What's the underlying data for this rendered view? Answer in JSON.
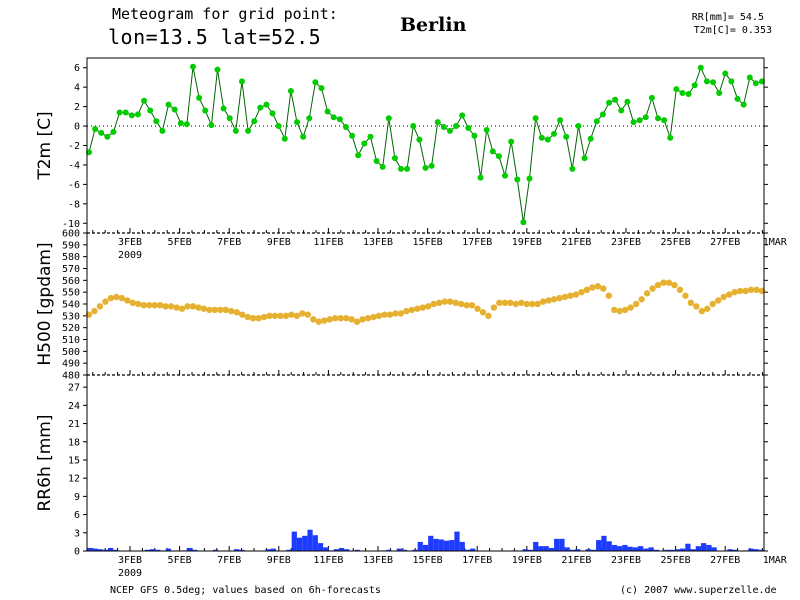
{
  "header": {
    "line1": "Meteogram for grid point:",
    "line2": "lon=13.5  lat=52.5",
    "city": "Berlin",
    "sum_rr": "RR[mm]= 54.5",
    "mean_t2m": "T2m[C]= 0.353"
  },
  "footer": {
    "left": "NCEP GFS 0.5deg; values based on 6h-forecasts",
    "right": "(c) 2007 www.superzelle.de"
  },
  "colors": {
    "t2m": "#00cc00",
    "h500": "#e6b030",
    "rr": "#1e3cff",
    "t2m_dark": "#006600"
  },
  "chart_data": [
    {
      "type": "line",
      "ylabel": "T2m [C]",
      "ylim": [
        -11,
        7
      ],
      "yticks": [
        6,
        4,
        2,
        0,
        -2,
        -4,
        -6,
        -8,
        -10
      ],
      "x_labels": [
        "3FEB",
        "5FEB",
        "7FEB",
        "9FEB",
        "11FEB",
        "13FEB",
        "15FEB",
        "17FEB",
        "19FEB",
        "21FEB",
        "23FEB",
        "25FEB",
        "27FEB",
        "1MAR"
      ],
      "year_label": "2009",
      "dashed_zero": true,
      "series": [
        {
          "values": [
            -2.7,
            -0.3,
            -0.7,
            -1.1,
            -0.6,
            1.4,
            1.4,
            1.1,
            1.2,
            2.6,
            1.6,
            0.5,
            -0.5,
            2.2,
            1.7,
            0.3,
            0.2,
            6.1,
            2.9,
            1.6,
            0.1,
            5.8,
            1.8,
            0.8,
            -0.5,
            4.6,
            -0.5,
            0.5,
            1.9,
            2.2,
            1.3,
            0.0,
            -1.3,
            3.6,
            0.4,
            -1.1,
            0.8,
            4.5,
            3.9,
            1.5,
            0.9,
            0.7,
            -0.1,
            -1.0,
            -3.0,
            -1.8,
            -1.1,
            -3.6,
            -4.2,
            0.8,
            -3.3,
            -4.4,
            -4.4,
            0.0,
            -1.4,
            -4.3,
            -4.1,
            0.4,
            -0.1,
            -0.5,
            0.0,
            1.1,
            -0.2,
            -1.0,
            -5.3,
            -0.4,
            -2.6,
            -3.1,
            -5.1,
            -1.6,
            -5.5,
            -9.9,
            -5.4,
            0.8,
            -1.2,
            -1.4,
            -0.8,
            0.6,
            -1.1,
            -4.4,
            0.0,
            -3.3,
            -1.3,
            0.5,
            1.2,
            2.4,
            2.7,
            1.6,
            2.5,
            0.4,
            0.6,
            0.9,
            2.9,
            0.8,
            0.6,
            -1.2,
            3.8,
            3.4,
            3.3,
            4.2,
            6.0,
            4.6,
            4.5,
            3.4,
            5.4,
            4.6,
            2.8,
            2.2,
            5.0,
            4.4,
            4.6
          ]
        }
      ]
    },
    {
      "type": "line",
      "ylabel": "H500 [gpdam]",
      "ylim": [
        480,
        600
      ],
      "yticks": [
        600,
        590,
        580,
        570,
        560,
        550,
        540,
        530,
        520,
        510,
        500,
        490,
        480
      ],
      "series": [
        {
          "values": [
            531,
            534,
            538,
            542,
            545,
            546,
            545,
            543,
            541,
            540,
            539,
            539,
            539,
            539,
            538,
            538,
            537,
            536,
            538,
            538,
            537,
            536,
            535,
            535,
            535,
            535,
            534,
            533,
            531,
            529,
            528,
            528,
            529,
            530,
            530,
            530,
            530,
            531,
            530,
            532,
            531,
            527,
            525,
            526,
            527,
            528,
            528,
            528,
            527,
            525,
            527,
            528,
            529,
            530,
            531,
            531,
            532,
            532,
            534,
            535,
            536,
            537,
            538,
            540,
            541,
            542,
            542,
            541,
            540,
            539,
            539,
            536,
            533,
            530,
            537,
            541,
            541,
            541,
            540,
            541,
            540,
            540,
            540,
            542,
            543,
            544,
            545,
            546,
            547,
            548,
            550,
            552,
            554,
            555,
            553,
            547,
            535,
            534,
            535,
            537,
            540,
            544,
            549,
            553,
            556,
            558,
            558,
            556,
            552,
            547,
            541,
            538,
            534,
            536,
            540,
            543,
            546,
            548,
            550,
            551,
            551,
            552,
            552,
            551
          ]
        }
      ]
    },
    {
      "type": "bar",
      "ylabel": "RR6h [mm]",
      "ylim": [
        0,
        29
      ],
      "yticks": [
        27,
        24,
        21,
        18,
        15,
        12,
        9,
        6,
        3,
        0
      ],
      "x_labels": [
        "3FEB",
        "5FEB",
        "7FEB",
        "9FEB",
        "11FEB",
        "13FEB",
        "15FEB",
        "17FEB",
        "19FEB",
        "21FEB",
        "23FEB",
        "25FEB",
        "27FEB",
        "1MAR"
      ],
      "year_label": "2009",
      "series": [
        {
          "values": [
            0.5,
            0.4,
            0.3,
            0.2,
            0.5,
            0.2,
            0,
            0,
            0,
            0,
            0,
            0.2,
            0.3,
            0.2,
            0.1,
            0.4,
            0,
            0,
            0.1,
            0.5,
            0.2,
            0,
            0,
            0,
            0.2,
            0,
            0,
            0,
            0.3,
            0.2,
            0,
            0,
            0,
            0,
            0.3,
            0.4,
            0,
            0,
            0.2,
            3.2,
            2.2,
            2.5,
            3.5,
            2.6,
            1.3,
            0.6,
            0.1,
            0.3,
            0.5,
            0.3,
            0,
            0.2,
            0,
            0,
            0,
            0,
            0.1,
            0.2,
            0,
            0.4,
            0.2,
            0,
            0.2,
            1.5,
            1.0,
            2.5,
            2.0,
            1.9,
            1.7,
            1.8,
            3.2,
            1.5,
            0.2,
            0.4,
            0,
            0,
            0,
            0,
            0,
            0,
            0,
            0.1,
            0,
            0.3,
            0.2,
            1.5,
            0.8,
            0.8,
            0.5,
            2.0,
            2.0,
            0.6,
            0.2,
            0.3,
            0,
            0.3,
            0.2,
            1.8,
            2.5,
            1.6,
            1.0,
            0.8,
            1.0,
            0.7,
            0.6,
            0.8,
            0.4,
            0.6,
            0.2,
            0,
            0.2,
            0.2,
            0.3,
            0.4,
            1.2,
            0.3,
            0.8,
            1.3,
            1.0,
            0.6,
            0,
            0,
            0.3,
            0.2,
            0,
            0.1,
            0.4,
            0.3,
            0.2
          ]
        }
      ]
    }
  ]
}
